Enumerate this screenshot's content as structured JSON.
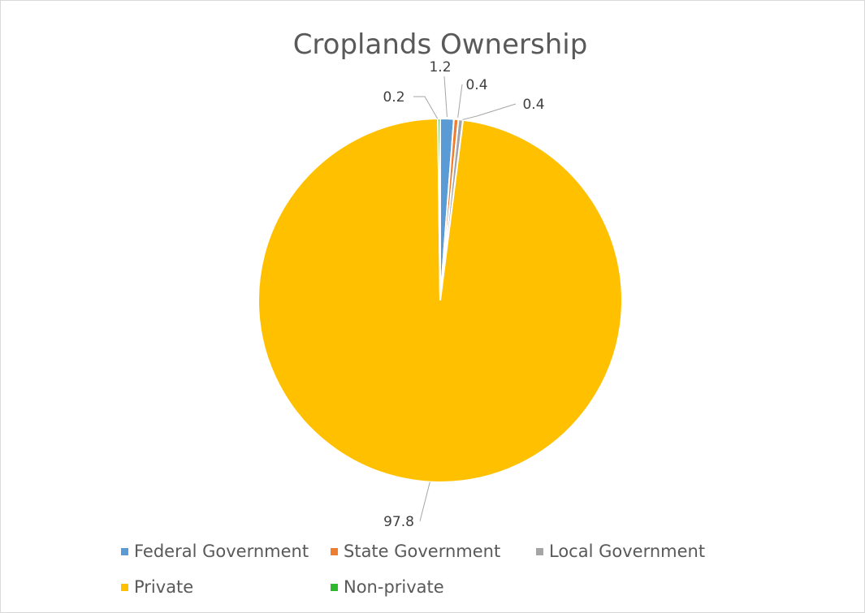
{
  "chart_data": {
    "type": "pie",
    "title": "Croplands Ownership",
    "series": [
      {
        "name": "",
        "categories": [
          "Federal Government",
          "State Government",
          "Local Government",
          "Private",
          "Non-private"
        ],
        "values": [
          1.2,
          0.4,
          0.4,
          97.8,
          0.2
        ],
        "labels": [
          "1.2",
          "0.4",
          "0.4",
          "97.8",
          "0.2"
        ],
        "colors": [
          "#5b9bd5",
          "#ed7d31",
          "#a5a5a5",
          "#ffc000",
          "#2eb82e"
        ]
      }
    ],
    "legend": {
      "position": "bottom",
      "entries": [
        "Federal Government",
        "State Government",
        "Local Government",
        "Private",
        "Non-private"
      ]
    }
  }
}
